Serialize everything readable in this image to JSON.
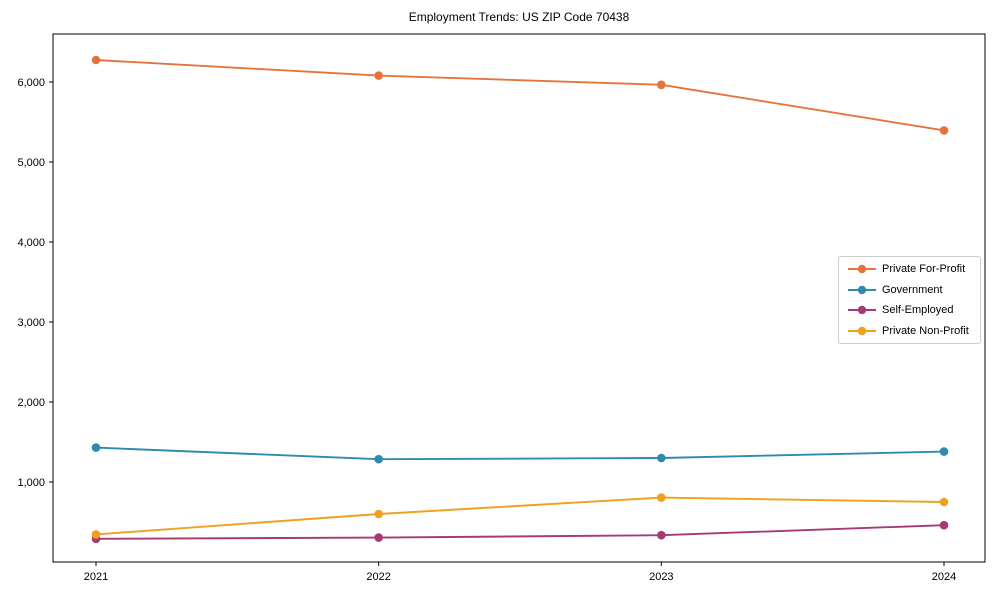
{
  "chart_data": {
    "type": "line",
    "title": "Employment Trends: US ZIP Code 70438",
    "xlabel": "",
    "ylabel": "",
    "x": [
      2021,
      2022,
      2023,
      2024
    ],
    "x_tick_labels": [
      "2021",
      "2022",
      "2023",
      "2024"
    ],
    "y_ticks": [
      1000,
      2000,
      3000,
      4000,
      5000,
      6000
    ],
    "y_tick_labels": [
      "1,000",
      "2,000",
      "3,000",
      "4,000",
      "5,000",
      "6,000"
    ],
    "ylim": [
      0,
      6600
    ],
    "grid": false,
    "legend_position": "center-right",
    "series": [
      {
        "name": "Private For-Profit",
        "color": "#e5743b",
        "values": [
          6275,
          6080,
          5965,
          5395
        ]
      },
      {
        "name": "Government",
        "color": "#2e8bad",
        "values": [
          1430,
          1285,
          1300,
          1380
        ]
      },
      {
        "name": "Self-Employed",
        "color": "#a53a74",
        "values": [
          290,
          305,
          335,
          460
        ]
      },
      {
        "name": "Private Non-Profit",
        "color": "#f0a01e",
        "values": [
          345,
          600,
          805,
          750
        ]
      }
    ],
    "colors": {
      "axis": "#000000",
      "text": "#000000",
      "legend_border": "#cccccc",
      "background": "#ffffff"
    }
  }
}
